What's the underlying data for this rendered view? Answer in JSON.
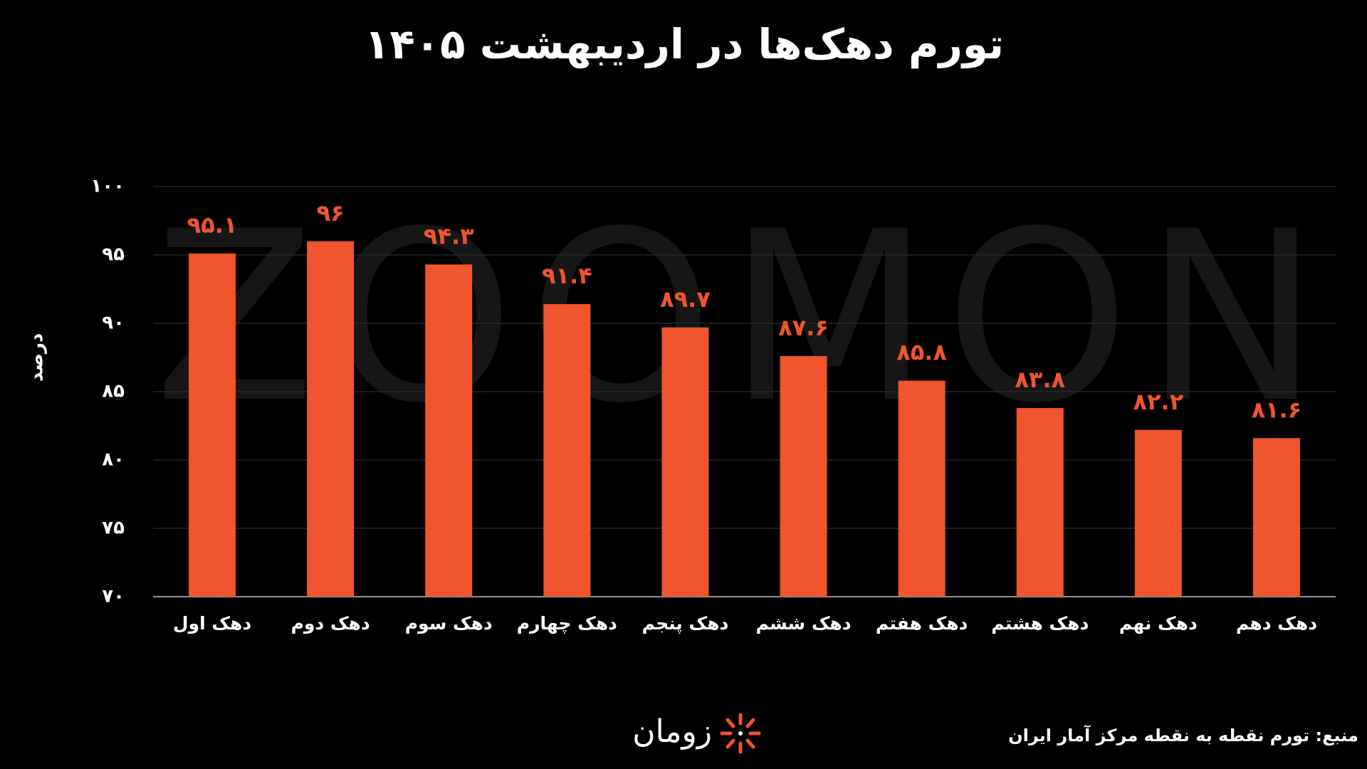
{
  "chart_data": {
    "type": "bar",
    "title": "تورم دهک‌ها در اردیبهشت ۱۴۰۵",
    "y_label": "درصد",
    "categories": [
      "دهک اول",
      "دهک دوم",
      "دهک سوم",
      "دهک چهارم",
      "دهک پنجم",
      "دهک ششم",
      "دهک هفتم",
      "دهک هشتم",
      "دهک نهم",
      "دهک دهم"
    ],
    "values": [
      95.1,
      96,
      94.3,
      91.4,
      89.7,
      87.6,
      85.8,
      83.8,
      82.2,
      81.6
    ],
    "value_labels": [
      "۹۵.۱",
      "۹۶",
      "۹۴.۳",
      "۹۱.۴",
      "۸۹.۷",
      "۸۷.۶",
      "۸۵.۸",
      "۸۳.۸",
      "۸۲.۲",
      "۸۱.۶"
    ],
    "color": "#f0552d",
    "ylim": [
      70,
      100
    ],
    "yticks": [
      {
        "value": 70,
        "label": "۷۰"
      },
      {
        "value": 75,
        "label": "۷۵"
      },
      {
        "value": 80,
        "label": "۸۰"
      },
      {
        "value": 85,
        "label": "۸۵"
      },
      {
        "value": 90,
        "label": "۹۰"
      },
      {
        "value": 95,
        "label": "۹۵"
      },
      {
        "value": 100,
        "label": "۱۰۰"
      }
    ],
    "grid": true,
    "watermark": "ZOOMON",
    "source": "منبع: تورم نقطه به نقطه مرکز آمار ایران",
    "logo": "زومان"
  }
}
